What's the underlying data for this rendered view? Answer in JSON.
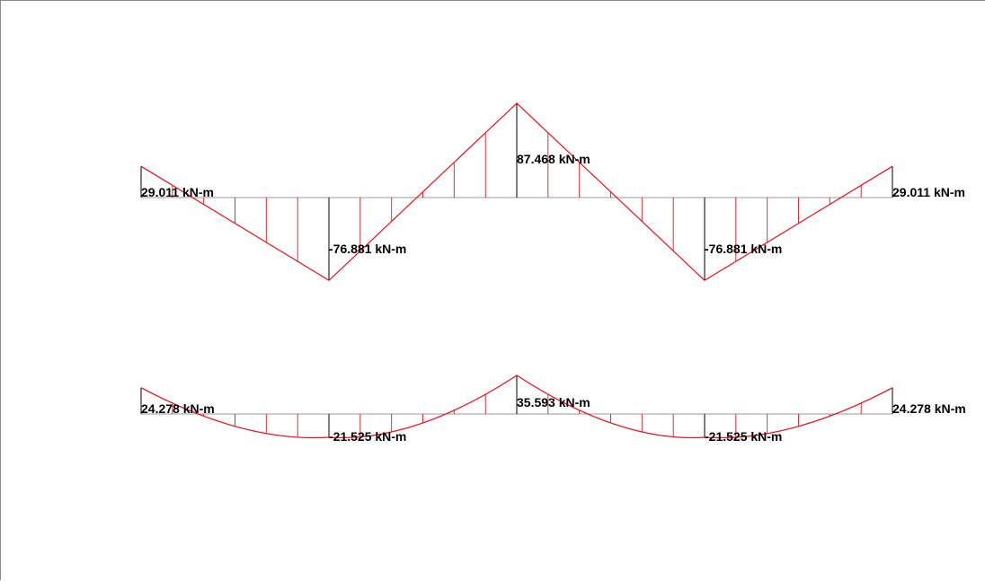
{
  "colors": {
    "diagram": "#e8131b",
    "baseline": "#9a9a9a",
    "support": "#000000",
    "label": "#000000",
    "frame": "#8a8a8a"
  },
  "diagrams": [
    {
      "moments": [
        29.011,
        -76.881,
        87.468,
        -76.881,
        29.011
      ],
      "shape": "linear",
      "labels": {
        "left_end": "29.011 kN-m",
        "support_1": "-76.881 kN-m",
        "midspan": "87.468 kN-m",
        "support_3": "-76.881 kN-m",
        "right_end": "29.011 kN-m"
      }
    },
    {
      "moments": [
        24.278,
        -21.525,
        35.593,
        -21.525,
        24.278
      ],
      "shape": "parabolic",
      "labels": {
        "left_end": "24.278 kN-m",
        "support_1": "-21.525 kN-m",
        "midspan": "35.593 kN-m",
        "support_3": "-21.525 kN-m",
        "right_end": "24.278 kN-m"
      }
    }
  ]
}
